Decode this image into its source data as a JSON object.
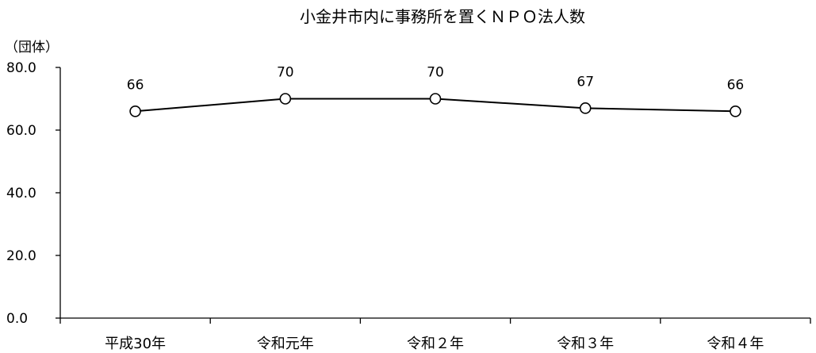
{
  "chart_data": {
    "type": "line",
    "title": "小金井市内に事務所を置くＮＰＯ法人数",
    "ylabel": "（団体）",
    "xlabel": "",
    "categories": [
      "平成30年",
      "令和元年",
      "令和２年",
      "令和３年",
      "令和４年"
    ],
    "series": [
      {
        "values": [
          66,
          70,
          70,
          67,
          66
        ],
        "data_labels": [
          "66",
          "70",
          "70",
          "67",
          "66"
        ]
      }
    ],
    "ylim": [
      0,
      80
    ],
    "yticks": [
      "0.0",
      "20.0",
      "40.0",
      "60.0",
      "80.0"
    ],
    "grid": false,
    "legend": "none",
    "marker": "open-circle",
    "colors": {
      "line": "#000000",
      "marker_fill": "#ffffff",
      "axis": "#000000"
    }
  }
}
